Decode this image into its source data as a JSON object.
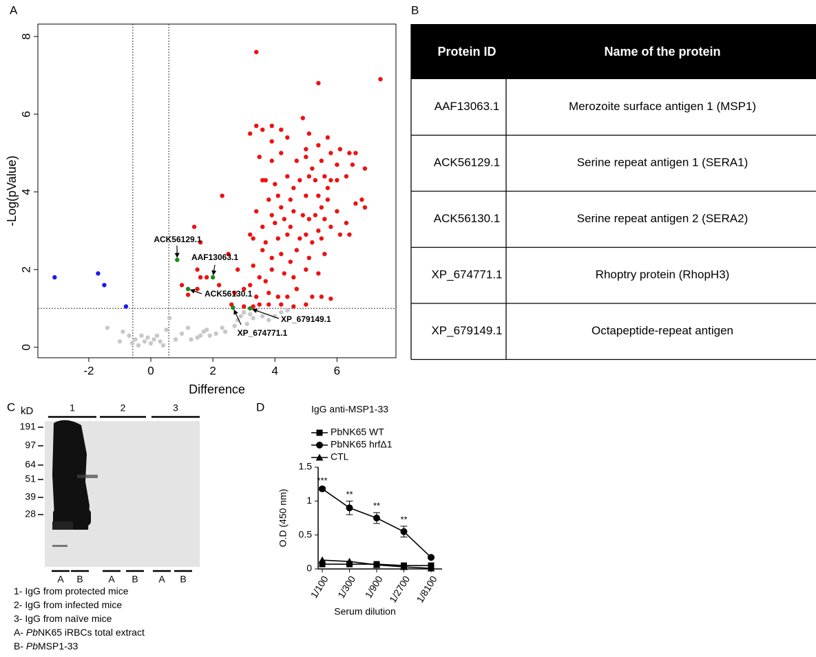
{
  "panels": {
    "a": "A",
    "b": "B",
    "c": "C",
    "d": "D"
  },
  "chart_data": [
    {
      "type": "scatter",
      "xlabel": "Difference",
      "ylabel": "-Log(pValue)",
      "xlim": [
        -3.64,
        7.9
      ],
      "ylim": [
        -0.27,
        8.32
      ],
      "xticks": [
        -2,
        0,
        2,
        4,
        6
      ],
      "yticks": [
        0,
        2,
        4,
        6,
        8
      ],
      "vlines": [
        -0.58,
        0.58
      ],
      "hlines": [
        1
      ],
      "series": [
        {
          "color": "#ee1111",
          "x": [
            3.4,
            7.4,
            5.4,
            4.9,
            3.4,
            3.6,
            3.9,
            4.2,
            5.1,
            5.7,
            3.2,
            3.9,
            4.4,
            5.4,
            5.8,
            6.1,
            6.4,
            6.6,
            5.0,
            4.2,
            3.9,
            4.7,
            5.0,
            5.5,
            6.0,
            6.5,
            6.9,
            5.2,
            3.5,
            3.6,
            4.0,
            4.4,
            4.8,
            5.1,
            5.3,
            5.6,
            5.8,
            6.0,
            5.7,
            6.3,
            4.6,
            3.7,
            2.3,
            3.8,
            4.1,
            4.5,
            5.0,
            5.4,
            5.7,
            6.6,
            6.8,
            6.9,
            5.5,
            4.2,
            3.4,
            3.9,
            4.3,
            4.6,
            4.9,
            5.1,
            5.3,
            5.6,
            6.0,
            6.3,
            4.0,
            4.5,
            5.4,
            5.8,
            3.6,
            1.4,
            3.2,
            3.3,
            3.7,
            4.4,
            4.8,
            5.0,
            5.5,
            6.1,
            6.4,
            5.2,
            4.1,
            1.6,
            2.5,
            3.6,
            4.2,
            4.7,
            5.1,
            5.6,
            3.9,
            4.5,
            1.5,
            2.8,
            3.3,
            3.9,
            4.3,
            5.0,
            5.4,
            3.5,
            4.6,
            1.6,
            2.2,
            1.8,
            1.0,
            1.5,
            1.2,
            3.0,
            3.4,
            3.8,
            4.1,
            4.4,
            4.7,
            5.2,
            5.5,
            5.8,
            2.7,
            3.7,
            3.2,
            2.6,
            3.0,
            3.5,
            3.8,
            4.2,
            4.6,
            5.0,
            3.3
          ],
          "y": [
            7.6,
            6.9,
            6.8,
            5.9,
            5.7,
            5.6,
            5.7,
            5.6,
            5.5,
            5.4,
            5.5,
            5.3,
            5.4,
            5.2,
            5.0,
            5.1,
            5.0,
            5.0,
            5.1,
            5.0,
            4.8,
            4.8,
            4.9,
            4.8,
            4.7,
            4.7,
            4.6,
            4.6,
            4.9,
            4.3,
            4.2,
            4.4,
            4.3,
            4.4,
            4.3,
            4.4,
            4.3,
            4.3,
            4.1,
            4.4,
            4.1,
            4.3,
            3.9,
            3.8,
            3.9,
            3.8,
            3.9,
            3.9,
            3.8,
            3.7,
            3.8,
            3.6,
            3.6,
            3.6,
            3.5,
            3.4,
            3.3,
            3.5,
            3.4,
            3.3,
            3.4,
            3.3,
            3.5,
            3.2,
            3.2,
            3.1,
            3.0,
            3.1,
            3.1,
            3.1,
            2.9,
            2.8,
            2.7,
            2.9,
            2.8,
            2.9,
            2.8,
            2.9,
            2.9,
            2.7,
            2.8,
            2.7,
            2.4,
            2.5,
            2.4,
            2.5,
            2.3,
            2.4,
            2.3,
            2.2,
            2.0,
            2.0,
            2.1,
            2.0,
            1.9,
            2.0,
            1.9,
            1.8,
            1.8,
            1.8,
            1.6,
            1.8,
            1.6,
            1.5,
            1.35,
            1.5,
            1.3,
            1.4,
            1.3,
            1.3,
            1.5,
            1.3,
            1.3,
            1.25,
            1.4,
            1.7,
            1.6,
            1.1,
            1.05,
            1.1,
            1.1,
            1.1,
            1.05,
            1.1,
            1.05
          ]
        },
        {
          "color": "#c8c8c8",
          "x": [
            -1.0,
            -0.7,
            -0.5,
            -0.3,
            -0.1,
            0.1,
            0.2,
            0.3,
            -0.6,
            -0.4,
            -0.2,
            0,
            0.5,
            0.8,
            1.0,
            1.2,
            1.3,
            1.5,
            1.7,
            1.8,
            1.9,
            2.1,
            2.3,
            2.4,
            2.7,
            2.8,
            2.9,
            3.0,
            3.1,
            3.2,
            3.3,
            3.4,
            3.6,
            3.8,
            4.0,
            4.2,
            4.4,
            -1.4,
            -0.9,
            0.6,
            1.6,
            0.4
          ],
          "y": [
            0.15,
            0.3,
            0.2,
            0.3,
            0.25,
            0.2,
            0.3,
            0.15,
            0.1,
            0.05,
            0.15,
            0.1,
            0.45,
            0.2,
            0.35,
            0.5,
            0.2,
            0.25,
            0.4,
            0.45,
            0.3,
            0.35,
            0.5,
            0.4,
            0.55,
            0.7,
            0.8,
            0.9,
            0.6,
            0.85,
            0.75,
            0.95,
            0.8,
            0.7,
            0.8,
            0.9,
            0.95,
            0.5,
            0.4,
            0.75,
            0.3,
            0.05
          ]
        },
        {
          "color": "#1a1aee",
          "x": [
            -3.1,
            -1.7,
            -1.5,
            -0.8
          ],
          "y": [
            1.8,
            1.9,
            1.6,
            1.05
          ]
        },
        {
          "color": "#1a8a1a",
          "x": [
            0.85,
            2.0,
            1.2,
            2.65,
            3.2
          ],
          "y": [
            2.25,
            1.8,
            1.5,
            1.02,
            1.0
          ],
          "labels": [
            "ACK56129.1",
            "AAF13063.1",
            "ACK56130.1",
            "XP_674771.1",
            "XP_679149.1"
          ]
        }
      ]
    },
    {
      "type": "line",
      "title": "IgG anti-MSP1-33",
      "xlabel": "Serum dilution",
      "ylabel": "O.D (450 nm)",
      "categories": [
        "1/100",
        "1/300",
        "1/900",
        "1/2700",
        "1/8100"
      ],
      "ylim": [
        0,
        1.5
      ],
      "yticks": [
        0,
        0.5,
        1,
        1.5
      ],
      "series": [
        {
          "name": "PbNK65 WT",
          "color": "#000000",
          "marker": "square",
          "values": [
            0.07,
            0.07,
            0.07,
            0.05,
            0.05
          ]
        },
        {
          "name": "PbNK65 hrfΔ1",
          "color": "#000000",
          "marker": "circle",
          "values": [
            1.18,
            0.9,
            0.75,
            0.55,
            0.17
          ],
          "errors": [
            0.02,
            0.1,
            0.08,
            0.08,
            0.01
          ],
          "significance": [
            "***",
            "**",
            "**",
            "**",
            null
          ]
        },
        {
          "name": "CTL",
          "color": "#000000",
          "marker": "triangle",
          "values": [
            0.13,
            0.11,
            0.06,
            0.03,
            0.01
          ]
        }
      ]
    }
  ],
  "table": {
    "header": [
      "Protein ID",
      "Name of the protein"
    ],
    "rows": [
      [
        "AAF13063.1",
        "Merozoite surface antigen 1 (MSP1)"
      ],
      [
        "ACK56129.1",
        "Serine repeat antigen 1 (SERA1)"
      ],
      [
        "ACK56130.1",
        "Serine repeat antigen 2 (SERA2)"
      ],
      [
        "XP_674771.1",
        "Rhoptry protein (RhopH3)"
      ],
      [
        "XP_679149.1",
        "Octapeptide-repeat antigen"
      ]
    ]
  },
  "blot": {
    "unit": "kD",
    "markers": [
      "191",
      "97",
      "64",
      "51",
      "39",
      "28"
    ],
    "groups": [
      "1",
      "2",
      "3"
    ],
    "lanes": [
      "A",
      "B",
      "A",
      "B",
      "A",
      "B"
    ],
    "legend": [
      [
        "1- IgG from protected mice"
      ],
      [
        "2- IgG from infected mice"
      ],
      [
        "3- IgG from naïve mice"
      ],
      [
        "A- ",
        "Pb",
        "NK65 iRBCs total extract"
      ],
      [
        "B- ",
        "Pb",
        "MSP1-33"
      ]
    ]
  }
}
